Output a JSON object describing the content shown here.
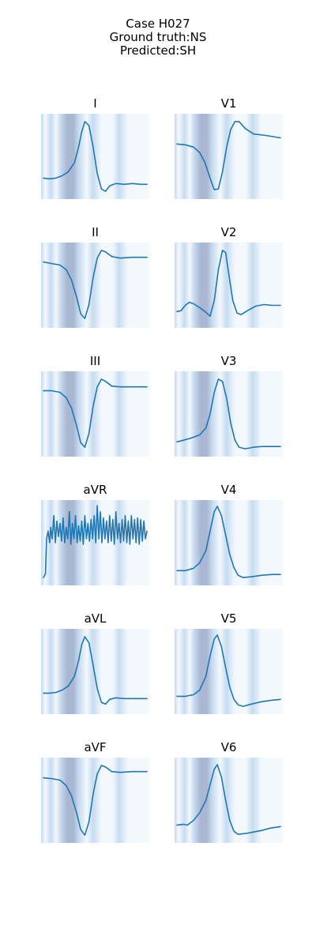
{
  "figure": {
    "title_lines": [
      "Case H027",
      "Ground truth:NS",
      "Predicted:SH"
    ]
  },
  "colors": {
    "trace": "#1f77b4",
    "attention_low": "#f3f8fd",
    "attention_mid": "#c6dcef",
    "attention_high": "#aab7d2"
  },
  "chart_data": [
    {
      "type": "line",
      "lead": "I",
      "shape": "upright",
      "points": [
        [
          0,
          0.22
        ],
        [
          0.06,
          0.21
        ],
        [
          0.12,
          0.22
        ],
        [
          0.18,
          0.25
        ],
        [
          0.24,
          0.3
        ],
        [
          0.3,
          0.42
        ],
        [
          0.34,
          0.62
        ],
        [
          0.37,
          0.82
        ],
        [
          0.4,
          0.95
        ],
        [
          0.44,
          0.9
        ],
        [
          0.48,
          0.62
        ],
        [
          0.52,
          0.28
        ],
        [
          0.56,
          0.08
        ],
        [
          0.6,
          0.05
        ],
        [
          0.64,
          0.12
        ],
        [
          0.7,
          0.15
        ],
        [
          0.78,
          0.14
        ],
        [
          0.86,
          0.15
        ],
        [
          0.94,
          0.14
        ],
        [
          1,
          0.14
        ]
      ]
    },
    {
      "type": "line",
      "lead": "V1",
      "shape": "inverted",
      "points": [
        [
          0,
          0.66
        ],
        [
          0.08,
          0.65
        ],
        [
          0.16,
          0.62
        ],
        [
          0.22,
          0.55
        ],
        [
          0.27,
          0.42
        ],
        [
          0.32,
          0.22
        ],
        [
          0.36,
          0.07
        ],
        [
          0.4,
          0.08
        ],
        [
          0.44,
          0.3
        ],
        [
          0.48,
          0.62
        ],
        [
          0.52,
          0.85
        ],
        [
          0.56,
          0.95
        ],
        [
          0.6,
          0.95
        ],
        [
          0.66,
          0.86
        ],
        [
          0.74,
          0.79
        ],
        [
          0.86,
          0.77
        ],
        [
          1,
          0.74
        ]
      ]
    },
    {
      "type": "line",
      "lead": "II",
      "shape": "inverted",
      "points": [
        [
          0,
          0.8
        ],
        [
          0.08,
          0.78
        ],
        [
          0.16,
          0.76
        ],
        [
          0.22,
          0.7
        ],
        [
          0.27,
          0.57
        ],
        [
          0.32,
          0.35
        ],
        [
          0.36,
          0.13
        ],
        [
          0.4,
          0.07
        ],
        [
          0.44,
          0.25
        ],
        [
          0.48,
          0.6
        ],
        [
          0.52,
          0.85
        ],
        [
          0.56,
          0.95
        ],
        [
          0.6,
          0.93
        ],
        [
          0.66,
          0.87
        ],
        [
          0.74,
          0.85
        ],
        [
          0.86,
          0.86
        ],
        [
          1,
          0.86
        ]
      ]
    },
    {
      "type": "line",
      "lead": "V2",
      "shape": "upright",
      "points": [
        [
          0,
          0.16
        ],
        [
          0.04,
          0.17
        ],
        [
          0.08,
          0.24
        ],
        [
          0.12,
          0.28
        ],
        [
          0.16,
          0.26
        ],
        [
          0.22,
          0.21
        ],
        [
          0.28,
          0.15
        ],
        [
          0.32,
          0.1
        ],
        [
          0.36,
          0.3
        ],
        [
          0.4,
          0.7
        ],
        [
          0.44,
          0.95
        ],
        [
          0.47,
          0.92
        ],
        [
          0.5,
          0.65
        ],
        [
          0.54,
          0.3
        ],
        [
          0.58,
          0.14
        ],
        [
          0.62,
          0.12
        ],
        [
          0.68,
          0.17
        ],
        [
          0.76,
          0.23
        ],
        [
          0.84,
          0.25
        ],
        [
          0.92,
          0.24
        ],
        [
          1,
          0.24
        ]
      ]
    },
    {
      "type": "line",
      "lead": "III",
      "shape": "inverted",
      "points": [
        [
          0,
          0.8
        ],
        [
          0.08,
          0.8
        ],
        [
          0.16,
          0.78
        ],
        [
          0.22,
          0.71
        ],
        [
          0.27,
          0.58
        ],
        [
          0.32,
          0.35
        ],
        [
          0.36,
          0.13
        ],
        [
          0.4,
          0.07
        ],
        [
          0.44,
          0.25
        ],
        [
          0.48,
          0.6
        ],
        [
          0.52,
          0.85
        ],
        [
          0.56,
          0.95
        ],
        [
          0.6,
          0.92
        ],
        [
          0.66,
          0.86
        ],
        [
          0.74,
          0.85
        ],
        [
          0.86,
          0.85
        ],
        [
          1,
          0.85
        ]
      ]
    },
    {
      "type": "line",
      "lead": "V3",
      "shape": "upright",
      "points": [
        [
          0,
          0.14
        ],
        [
          0.06,
          0.16
        ],
        [
          0.14,
          0.19
        ],
        [
          0.22,
          0.23
        ],
        [
          0.28,
          0.32
        ],
        [
          0.32,
          0.5
        ],
        [
          0.36,
          0.78
        ],
        [
          0.4,
          0.95
        ],
        [
          0.44,
          0.92
        ],
        [
          0.48,
          0.7
        ],
        [
          0.52,
          0.38
        ],
        [
          0.56,
          0.16
        ],
        [
          0.6,
          0.07
        ],
        [
          0.66,
          0.05
        ],
        [
          0.74,
          0.07
        ],
        [
          0.82,
          0.08
        ],
        [
          0.9,
          0.08
        ],
        [
          1,
          0.08
        ]
      ]
    },
    {
      "type": "line",
      "lead": "aVR",
      "shape": "noise",
      "points": [
        [
          0,
          0.05
        ],
        [
          0.02,
          0.1
        ],
        [
          0.03,
          0.55
        ],
        [
          0.045,
          0.65
        ],
        [
          0.06,
          0.5
        ],
        [
          0.07,
          0.7
        ],
        [
          0.085,
          0.55
        ],
        [
          0.1,
          0.85
        ],
        [
          0.115,
          0.5
        ],
        [
          0.13,
          0.78
        ],
        [
          0.145,
          0.58
        ],
        [
          0.16,
          0.75
        ],
        [
          0.175,
          0.52
        ],
        [
          0.19,
          0.82
        ],
        [
          0.205,
          0.5
        ],
        [
          0.22,
          0.7
        ],
        [
          0.235,
          0.55
        ],
        [
          0.25,
          0.9
        ],
        [
          0.265,
          0.48
        ],
        [
          0.28,
          0.75
        ],
        [
          0.295,
          0.55
        ],
        [
          0.31,
          0.85
        ],
        [
          0.325,
          0.5
        ],
        [
          0.34,
          0.72
        ],
        [
          0.355,
          0.52
        ],
        [
          0.37,
          0.78
        ],
        [
          0.385,
          0.48
        ],
        [
          0.4,
          0.85
        ],
        [
          0.415,
          0.55
        ],
        [
          0.43,
          0.75
        ],
        [
          0.445,
          0.52
        ],
        [
          0.46,
          0.8
        ],
        [
          0.475,
          0.55
        ],
        [
          0.49,
          0.85
        ],
        [
          0.505,
          0.5
        ],
        [
          0.52,
          0.98
        ],
        [
          0.535,
          0.55
        ],
        [
          0.55,
          0.9
        ],
        [
          0.565,
          0.5
        ],
        [
          0.58,
          0.82
        ],
        [
          0.595,
          0.55
        ],
        [
          0.61,
          0.78
        ],
        [
          0.625,
          0.5
        ],
        [
          0.64,
          0.85
        ],
        [
          0.655,
          0.52
        ],
        [
          0.67,
          0.8
        ],
        [
          0.685,
          0.48
        ],
        [
          0.7,
          0.9
        ],
        [
          0.715,
          0.55
        ],
        [
          0.73,
          0.75
        ],
        [
          0.745,
          0.5
        ],
        [
          0.76,
          0.8
        ],
        [
          0.775,
          0.52
        ],
        [
          0.79,
          0.85
        ],
        [
          0.805,
          0.5
        ],
        [
          0.82,
          0.78
        ],
        [
          0.835,
          0.48
        ],
        [
          0.85,
          0.85
        ],
        [
          0.865,
          0.55
        ],
        [
          0.88,
          0.8
        ],
        [
          0.895,
          0.5
        ],
        [
          0.91,
          0.82
        ],
        [
          0.925,
          0.48
        ],
        [
          0.94,
          0.8
        ],
        [
          0.955,
          0.52
        ],
        [
          0.97,
          0.78
        ],
        [
          0.985,
          0.55
        ],
        [
          1,
          0.65
        ]
      ]
    },
    {
      "type": "line",
      "lead": "V4",
      "shape": "upright",
      "points": [
        [
          0,
          0.14
        ],
        [
          0.08,
          0.14
        ],
        [
          0.16,
          0.17
        ],
        [
          0.22,
          0.24
        ],
        [
          0.28,
          0.4
        ],
        [
          0.32,
          0.65
        ],
        [
          0.36,
          0.9
        ],
        [
          0.39,
          0.97
        ],
        [
          0.43,
          0.85
        ],
        [
          0.47,
          0.6
        ],
        [
          0.51,
          0.35
        ],
        [
          0.55,
          0.18
        ],
        [
          0.59,
          0.08
        ],
        [
          0.64,
          0.05
        ],
        [
          0.72,
          0.06
        ],
        [
          0.82,
          0.08
        ],
        [
          0.92,
          0.09
        ],
        [
          1,
          0.09
        ]
      ]
    },
    {
      "type": "line",
      "lead": "aVL",
      "shape": "upright",
      "points": [
        [
          0,
          0.22
        ],
        [
          0.06,
          0.22
        ],
        [
          0.12,
          0.23
        ],
        [
          0.18,
          0.26
        ],
        [
          0.24,
          0.31
        ],
        [
          0.3,
          0.44
        ],
        [
          0.34,
          0.64
        ],
        [
          0.37,
          0.85
        ],
        [
          0.4,
          0.95
        ],
        [
          0.44,
          0.87
        ],
        [
          0.48,
          0.58
        ],
        [
          0.52,
          0.28
        ],
        [
          0.56,
          0.1
        ],
        [
          0.6,
          0.08
        ],
        [
          0.64,
          0.14
        ],
        [
          0.7,
          0.16
        ],
        [
          0.78,
          0.15
        ],
        [
          0.86,
          0.15
        ],
        [
          0.94,
          0.15
        ],
        [
          1,
          0.15
        ]
      ]
    },
    {
      "type": "line",
      "lead": "V5",
      "shape": "upright",
      "points": [
        [
          0,
          0.18
        ],
        [
          0.08,
          0.18
        ],
        [
          0.16,
          0.2
        ],
        [
          0.22,
          0.26
        ],
        [
          0.28,
          0.44
        ],
        [
          0.32,
          0.7
        ],
        [
          0.36,
          0.92
        ],
        [
          0.39,
          0.97
        ],
        [
          0.43,
          0.82
        ],
        [
          0.47,
          0.55
        ],
        [
          0.51,
          0.3
        ],
        [
          0.55,
          0.14
        ],
        [
          0.59,
          0.07
        ],
        [
          0.64,
          0.05
        ],
        [
          0.72,
          0.08
        ],
        [
          0.82,
          0.11
        ],
        [
          0.92,
          0.13
        ],
        [
          1,
          0.14
        ]
      ]
    },
    {
      "type": "line",
      "lead": "aVF",
      "shape": "inverted",
      "points": [
        [
          0,
          0.79
        ],
        [
          0.08,
          0.78
        ],
        [
          0.16,
          0.76
        ],
        [
          0.22,
          0.69
        ],
        [
          0.27,
          0.56
        ],
        [
          0.32,
          0.34
        ],
        [
          0.36,
          0.12
        ],
        [
          0.4,
          0.05
        ],
        [
          0.44,
          0.22
        ],
        [
          0.48,
          0.58
        ],
        [
          0.52,
          0.84
        ],
        [
          0.56,
          0.95
        ],
        [
          0.6,
          0.93
        ],
        [
          0.66,
          0.87
        ],
        [
          0.74,
          0.86
        ],
        [
          0.86,
          0.87
        ],
        [
          1,
          0.87
        ]
      ]
    },
    {
      "type": "line",
      "lead": "V6",
      "shape": "upright",
      "points": [
        [
          0,
          0.18
        ],
        [
          0.06,
          0.19
        ],
        [
          0.1,
          0.18
        ],
        [
          0.16,
          0.24
        ],
        [
          0.22,
          0.34
        ],
        [
          0.28,
          0.5
        ],
        [
          0.32,
          0.7
        ],
        [
          0.36,
          0.9
        ],
        [
          0.39,
          0.96
        ],
        [
          0.43,
          0.8
        ],
        [
          0.47,
          0.5
        ],
        [
          0.51,
          0.24
        ],
        [
          0.55,
          0.1
        ],
        [
          0.59,
          0.06
        ],
        [
          0.66,
          0.07
        ],
        [
          0.74,
          0.09
        ],
        [
          0.82,
          0.11
        ],
        [
          0.9,
          0.14
        ],
        [
          1,
          0.16
        ]
      ]
    }
  ]
}
